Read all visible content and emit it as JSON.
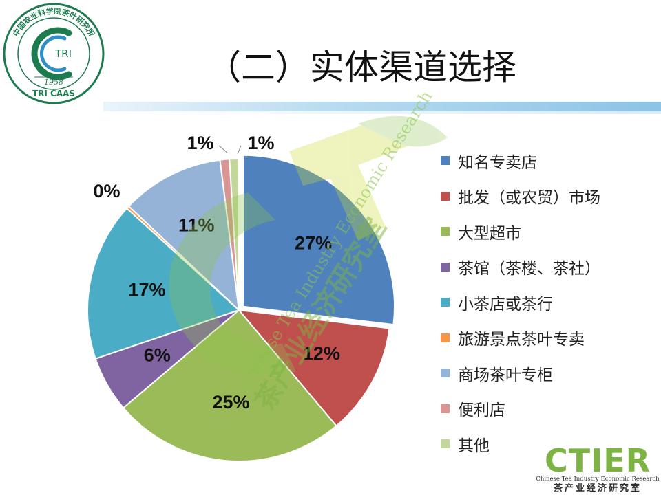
{
  "header": {
    "title": "（二）实体渠道选择"
  },
  "logos": {
    "tri_arc_text": "中国农业科学院茶叶研究所",
    "tri_center": "TRI",
    "tri_year": "1958",
    "tri_bottom": "TRI CAAS",
    "ctier_name": "CTIER",
    "ctier_en": "Chinese Tea Industry Economic Research",
    "ctier_cn": "茶产业经济研究室"
  },
  "watermark": {
    "en_text": "Chinese Tea Industry Economic Research",
    "cn_text": "茶产业经济研究室"
  },
  "chart_data": {
    "type": "pie",
    "title": "",
    "categories": [
      "知名专卖店",
      "批发（或农贸）市场",
      "大型超市",
      "茶馆（茶楼、茶社）",
      "小茶店或茶行",
      "旅游景点茶叶专卖",
      "商场茶叶专柜",
      "便利店",
      "其他"
    ],
    "values": [
      27,
      12,
      25,
      6,
      17,
      0,
      11,
      1,
      1
    ],
    "data_labels": [
      "27%",
      "12%",
      "25%",
      "6%",
      "17%",
      "0%",
      "11%",
      "1%",
      "1%"
    ],
    "colors": [
      "#4F81BD",
      "#C0504D",
      "#9BBB59",
      "#8064A2",
      "#4BACC6",
      "#F79646",
      "#95B3D7",
      "#D99694",
      "#C3D69B"
    ],
    "legend_position": "right"
  }
}
